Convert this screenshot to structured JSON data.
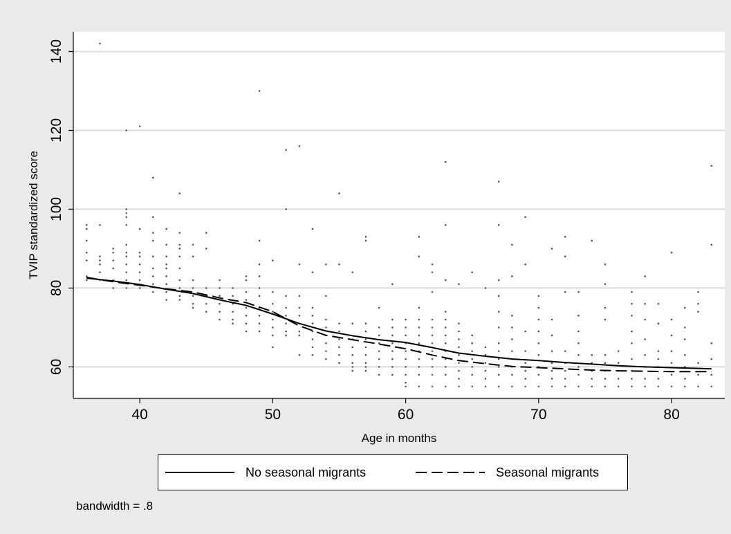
{
  "chart_data": {
    "type": "scatter",
    "xlabel": "Age in months",
    "ylabel": "TVIP standardized score",
    "xlim": [
      35,
      84
    ],
    "ylim": [
      52,
      145
    ],
    "xticks": [
      40,
      50,
      60,
      70,
      80
    ],
    "yticks": [
      60,
      80,
      100,
      120,
      140
    ],
    "grid": true,
    "legend_position": "bottom",
    "note": "bandwidth = .8",
    "series": [
      {
        "name": "No seasonal migrants",
        "style": "solid",
        "x": [
          36,
          38,
          40,
          42,
          44,
          46,
          48,
          50,
          52,
          54,
          56,
          58,
          60,
          62,
          64,
          66,
          68,
          70,
          72,
          74,
          76,
          78,
          80,
          83
        ],
        "y": [
          82.5,
          81.8,
          80.9,
          79.7,
          78.6,
          77.0,
          75.6,
          73.4,
          71.0,
          69.1,
          67.9,
          66.9,
          66.2,
          64.9,
          63.5,
          62.7,
          62.0,
          61.6,
          61.1,
          60.7,
          60.3,
          60.0,
          59.8,
          59.5
        ]
      },
      {
        "name": "Seasonal migrants",
        "style": "dashed",
        "x": [
          36,
          38,
          40,
          42,
          44,
          46,
          48,
          50,
          52,
          54,
          56,
          58,
          60,
          62,
          64,
          66,
          68,
          70,
          72,
          74,
          76,
          78,
          80,
          83
        ],
        "y": [
          82.7,
          81.6,
          80.7,
          79.8,
          79.0,
          77.5,
          76.3,
          74.0,
          70.4,
          68.0,
          66.9,
          65.8,
          64.6,
          63.0,
          61.6,
          60.8,
          60.1,
          59.8,
          59.5,
          59.2,
          59.0,
          58.9,
          58.8,
          58.8
        ]
      }
    ],
    "points": [
      [
        36,
        96
      ],
      [
        36,
        95
      ],
      [
        36,
        92
      ],
      [
        36,
        89
      ],
      [
        36,
        87
      ],
      [
        36,
        83
      ],
      [
        36,
        82
      ],
      [
        37,
        142
      ],
      [
        37,
        96
      ],
      [
        37,
        88
      ],
      [
        37,
        87
      ],
      [
        37,
        86
      ],
      [
        37,
        84
      ],
      [
        37,
        82
      ],
      [
        38,
        90
      ],
      [
        38,
        89
      ],
      [
        38,
        87
      ],
      [
        38,
        85
      ],
      [
        38,
        82
      ],
      [
        38,
        80
      ],
      [
        39,
        120
      ],
      [
        39,
        100
      ],
      [
        39,
        99
      ],
      [
        39,
        98
      ],
      [
        39,
        96
      ],
      [
        39,
        91
      ],
      [
        39,
        89
      ],
      [
        39,
        88
      ],
      [
        39,
        86
      ],
      [
        39,
        84
      ],
      [
        39,
        82
      ],
      [
        39,
        80
      ],
      [
        40,
        121
      ],
      [
        40,
        95
      ],
      [
        40,
        89
      ],
      [
        40,
        88
      ],
      [
        40,
        86
      ],
      [
        40,
        84
      ],
      [
        40,
        82
      ],
      [
        40,
        80
      ],
      [
        41,
        108
      ],
      [
        41,
        98
      ],
      [
        41,
        94
      ],
      [
        41,
        92
      ],
      [
        41,
        88
      ],
      [
        41,
        85
      ],
      [
        41,
        83
      ],
      [
        41,
        81
      ],
      [
        41,
        79
      ],
      [
        42,
        95
      ],
      [
        42,
        91
      ],
      [
        42,
        88
      ],
      [
        42,
        86
      ],
      [
        42,
        85
      ],
      [
        42,
        83
      ],
      [
        42,
        81
      ],
      [
        42,
        79
      ],
      [
        42,
        77
      ],
      [
        43,
        104
      ],
      [
        43,
        94
      ],
      [
        43,
        91
      ],
      [
        43,
        90
      ],
      [
        43,
        88
      ],
      [
        43,
        85
      ],
      [
        43,
        82
      ],
      [
        43,
        80
      ],
      [
        43,
        78
      ],
      [
        43,
        77
      ],
      [
        44,
        91
      ],
      [
        44,
        88
      ],
      [
        44,
        82
      ],
      [
        44,
        80
      ],
      [
        44,
        78
      ],
      [
        44,
        76
      ],
      [
        44,
        75
      ],
      [
        45,
        94
      ],
      [
        45,
        90
      ],
      [
        45,
        80
      ],
      [
        45,
        78
      ],
      [
        45,
        76
      ],
      [
        45,
        74
      ],
      [
        46,
        82
      ],
      [
        46,
        80
      ],
      [
        46,
        78
      ],
      [
        46,
        76
      ],
      [
        46,
        74
      ],
      [
        46,
        72
      ],
      [
        47,
        80
      ],
      [
        47,
        78
      ],
      [
        47,
        76
      ],
      [
        47,
        74
      ],
      [
        47,
        72
      ],
      [
        47,
        71
      ],
      [
        48,
        83
      ],
      [
        48,
        82
      ],
      [
        48,
        79
      ],
      [
        48,
        77
      ],
      [
        48,
        75
      ],
      [
        48,
        73
      ],
      [
        48,
        71
      ],
      [
        48,
        69
      ],
      [
        49,
        130
      ],
      [
        49,
        92
      ],
      [
        49,
        86
      ],
      [
        49,
        83
      ],
      [
        49,
        80
      ],
      [
        49,
        78
      ],
      [
        49,
        75
      ],
      [
        49,
        73
      ],
      [
        49,
        71
      ],
      [
        49,
        69
      ],
      [
        50,
        87
      ],
      [
        50,
        79
      ],
      [
        50,
        76
      ],
      [
        50,
        74
      ],
      [
        50,
        72
      ],
      [
        50,
        70
      ],
      [
        50,
        68
      ],
      [
        50,
        65
      ],
      [
        51,
        115
      ],
      [
        51,
        100
      ],
      [
        51,
        78
      ],
      [
        51,
        75
      ],
      [
        51,
        73
      ],
      [
        51,
        71
      ],
      [
        51,
        69
      ],
      [
        51,
        68
      ],
      [
        52,
        116
      ],
      [
        52,
        86
      ],
      [
        52,
        78
      ],
      [
        52,
        75
      ],
      [
        52,
        73
      ],
      [
        52,
        71
      ],
      [
        52,
        69
      ],
      [
        52,
        68
      ],
      [
        52,
        63
      ],
      [
        53,
        95
      ],
      [
        53,
        84
      ],
      [
        53,
        75
      ],
      [
        53,
        73
      ],
      [
        53,
        71
      ],
      [
        53,
        69
      ],
      [
        53,
        67
      ],
      [
        53,
        65
      ],
      [
        53,
        63
      ],
      [
        54,
        86
      ],
      [
        54,
        78
      ],
      [
        54,
        72
      ],
      [
        54,
        70
      ],
      [
        54,
        68
      ],
      [
        54,
        66
      ],
      [
        54,
        64
      ],
      [
        54,
        62
      ],
      [
        55,
        104
      ],
      [
        55,
        86
      ],
      [
        55,
        71
      ],
      [
        55,
        69
      ],
      [
        55,
        67
      ],
      [
        55,
        65
      ],
      [
        55,
        63
      ],
      [
        55,
        61
      ],
      [
        56,
        84
      ],
      [
        56,
        71
      ],
      [
        56,
        67
      ],
      [
        56,
        65
      ],
      [
        56,
        63
      ],
      [
        56,
        61
      ],
      [
        56,
        60
      ],
      [
        56,
        59
      ],
      [
        57,
        93
      ],
      [
        57,
        92
      ],
      [
        57,
        71
      ],
      [
        57,
        69
      ],
      [
        57,
        67
      ],
      [
        57,
        65
      ],
      [
        57,
        63
      ],
      [
        57,
        61
      ],
      [
        57,
        60
      ],
      [
        57,
        59
      ],
      [
        58,
        75
      ],
      [
        58,
        70
      ],
      [
        58,
        68
      ],
      [
        58,
        66
      ],
      [
        58,
        64
      ],
      [
        58,
        62
      ],
      [
        58,
        60
      ],
      [
        58,
        58
      ],
      [
        59,
        81
      ],
      [
        59,
        72
      ],
      [
        59,
        70
      ],
      [
        59,
        68
      ],
      [
        59,
        66
      ],
      [
        59,
        64
      ],
      [
        59,
        62
      ],
      [
        59,
        60
      ],
      [
        59,
        58
      ],
      [
        60,
        72
      ],
      [
        60,
        70
      ],
      [
        60,
        68
      ],
      [
        60,
        66
      ],
      [
        60,
        64
      ],
      [
        60,
        62
      ],
      [
        60,
        60
      ],
      [
        60,
        58
      ],
      [
        60,
        56
      ],
      [
        60,
        55
      ],
      [
        61,
        93
      ],
      [
        61,
        88
      ],
      [
        61,
        75
      ],
      [
        61,
        72
      ],
      [
        61,
        70
      ],
      [
        61,
        68
      ],
      [
        61,
        66
      ],
      [
        61,
        64
      ],
      [
        61,
        62
      ],
      [
        61,
        60
      ],
      [
        61,
        58
      ],
      [
        61,
        55
      ],
      [
        62,
        86
      ],
      [
        62,
        84
      ],
      [
        62,
        79
      ],
      [
        62,
        72
      ],
      [
        62,
        70
      ],
      [
        62,
        68
      ],
      [
        62,
        66
      ],
      [
        62,
        64
      ],
      [
        62,
        62
      ],
      [
        62,
        60
      ],
      [
        62,
        58
      ],
      [
        62,
        55
      ],
      [
        63,
        112
      ],
      [
        63,
        96
      ],
      [
        63,
        82
      ],
      [
        63,
        74
      ],
      [
        63,
        72
      ],
      [
        63,
        70
      ],
      [
        63,
        68
      ],
      [
        63,
        66
      ],
      [
        63,
        64
      ],
      [
        63,
        62
      ],
      [
        63,
        60
      ],
      [
        63,
        58
      ],
      [
        63,
        55
      ],
      [
        64,
        81
      ],
      [
        64,
        71
      ],
      [
        64,
        69
      ],
      [
        64,
        67
      ],
      [
        64,
        65
      ],
      [
        64,
        63
      ],
      [
        64,
        61
      ],
      [
        64,
        59
      ],
      [
        64,
        57
      ],
      [
        64,
        55
      ],
      [
        65,
        84
      ],
      [
        65,
        68
      ],
      [
        65,
        66
      ],
      [
        65,
        64
      ],
      [
        65,
        62
      ],
      [
        65,
        60
      ],
      [
        65,
        58
      ],
      [
        65,
        55
      ],
      [
        66,
        80
      ],
      [
        66,
        65
      ],
      [
        66,
        63
      ],
      [
        66,
        61
      ],
      [
        66,
        59
      ],
      [
        66,
        57
      ],
      [
        66,
        55
      ],
      [
        67,
        107
      ],
      [
        67,
        96
      ],
      [
        67,
        82
      ],
      [
        67,
        78
      ],
      [
        67,
        74
      ],
      [
        67,
        70
      ],
      [
        67,
        66
      ],
      [
        67,
        64
      ],
      [
        67,
        62
      ],
      [
        67,
        60
      ],
      [
        67,
        58
      ],
      [
        67,
        55
      ],
      [
        68,
        91
      ],
      [
        68,
        83
      ],
      [
        68,
        73
      ],
      [
        68,
        70
      ],
      [
        68,
        67
      ],
      [
        68,
        64
      ],
      [
        68,
        62
      ],
      [
        68,
        60
      ],
      [
        68,
        58
      ],
      [
        68,
        55
      ],
      [
        69,
        98
      ],
      [
        69,
        86
      ],
      [
        69,
        69
      ],
      [
        69,
        64
      ],
      [
        69,
        61
      ],
      [
        69,
        59
      ],
      [
        69,
        57
      ],
      [
        69,
        55
      ],
      [
        70,
        78
      ],
      [
        70,
        75
      ],
      [
        70,
        72
      ],
      [
        70,
        69
      ],
      [
        70,
        66
      ],
      [
        70,
        63
      ],
      [
        70,
        60
      ],
      [
        70,
        58
      ],
      [
        70,
        55
      ],
      [
        71,
        90
      ],
      [
        71,
        72
      ],
      [
        71,
        68
      ],
      [
        71,
        64
      ],
      [
        71,
        61
      ],
      [
        71,
        59
      ],
      [
        71,
        57
      ],
      [
        71,
        55
      ],
      [
        72,
        93
      ],
      [
        72,
        88
      ],
      [
        72,
        79
      ],
      [
        72,
        64
      ],
      [
        72,
        61
      ],
      [
        72,
        59
      ],
      [
        72,
        57
      ],
      [
        72,
        55
      ],
      [
        73,
        79
      ],
      [
        73,
        73
      ],
      [
        73,
        69
      ],
      [
        73,
        66
      ],
      [
        73,
        63
      ],
      [
        73,
        60
      ],
      [
        73,
        58
      ],
      [
        73,
        55
      ],
      [
        74,
        92
      ],
      [
        74,
        63
      ],
      [
        74,
        61
      ],
      [
        74,
        59
      ],
      [
        74,
        57
      ],
      [
        74,
        55
      ],
      [
        75,
        86
      ],
      [
        75,
        81
      ],
      [
        75,
        75
      ],
      [
        75,
        72
      ],
      [
        75,
        63
      ],
      [
        75,
        61
      ],
      [
        75,
        59
      ],
      [
        75,
        57
      ],
      [
        75,
        55
      ],
      [
        76,
        64
      ],
      [
        76,
        61
      ],
      [
        76,
        59
      ],
      [
        76,
        57
      ],
      [
        76,
        55
      ],
      [
        77,
        79
      ],
      [
        77,
        76
      ],
      [
        77,
        73
      ],
      [
        77,
        69
      ],
      [
        77,
        66
      ],
      [
        77,
        62
      ],
      [
        77,
        59
      ],
      [
        77,
        57
      ],
      [
        77,
        55
      ],
      [
        78,
        83
      ],
      [
        78,
        76
      ],
      [
        78,
        72
      ],
      [
        78,
        67
      ],
      [
        78,
        63
      ],
      [
        78,
        60
      ],
      [
        78,
        57
      ],
      [
        78,
        55
      ],
      [
        79,
        76
      ],
      [
        79,
        71
      ],
      [
        79,
        64
      ],
      [
        79,
        62
      ],
      [
        79,
        60
      ],
      [
        79,
        57
      ],
      [
        79,
        55
      ],
      [
        80,
        89
      ],
      [
        80,
        72
      ],
      [
        80,
        68
      ],
      [
        80,
        64
      ],
      [
        80,
        61
      ],
      [
        80,
        58
      ],
      [
        80,
        55
      ],
      [
        81,
        75
      ],
      [
        81,
        70
      ],
      [
        81,
        67
      ],
      [
        81,
        63
      ],
      [
        81,
        60
      ],
      [
        81,
        57
      ],
      [
        81,
        55
      ],
      [
        82,
        79
      ],
      [
        82,
        76
      ],
      [
        82,
        74
      ],
      [
        82,
        61
      ],
      [
        82,
        58
      ],
      [
        82,
        55
      ],
      [
        83,
        111
      ],
      [
        83,
        91
      ],
      [
        83,
        66
      ],
      [
        83,
        62
      ],
      [
        83,
        58
      ],
      [
        83,
        55
      ]
    ]
  }
}
